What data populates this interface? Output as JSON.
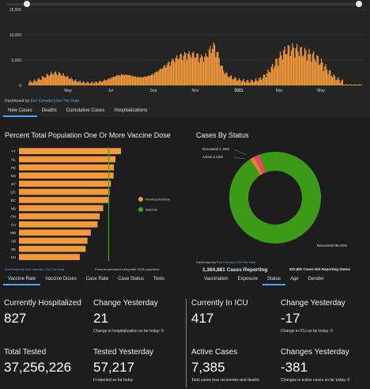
{
  "daily_chart": {
    "yticks": [
      "15,000",
      "10,000",
      "5,000",
      "0"
    ],
    "xticks": [
      "May",
      "Jul",
      "Sep",
      "Nov",
      "2021",
      "Mar",
      "May"
    ],
    "bar_color": "#f39a3c",
    "dashboard_by": "Dashboard by",
    "dashboard_by_link": "Esri Canada",
    "dashboard_sep": "|",
    "data_link": "Get The Data"
  },
  "top_tabs": [
    {
      "label": "New Cases",
      "active": true
    },
    {
      "label": "Deaths",
      "active": false
    },
    {
      "label": "Cumulative Cases",
      "active": false
    },
    {
      "label": "Hospitalizations",
      "active": false
    }
  ],
  "vaccine_panel": {
    "title": "Percent Total Population One Or More Vaccine Dose",
    "footnote_link_text": "Dashboard by Esri Canada | Get The Data",
    "footnote": "Percent calculated using total 2019 population"
  },
  "chart_data": {
    "type": "bar",
    "orientation": "horizontal",
    "categories": [
      "YT",
      "NL",
      "PE",
      "NS",
      "NT",
      "QC",
      "BC",
      "NB",
      "ON",
      "CA",
      "MB",
      "AB",
      "SK",
      "NU"
    ],
    "values": [
      78.2,
      76.4,
      75.9,
      75.8,
      74.9,
      74.5,
      74.2,
      72.4,
      71.3,
      70.6,
      68.4,
      67.3,
      66.7,
      64.8
    ],
    "xlim": [
      45,
      80
    ],
    "xticks": [
      50,
      60,
      70,
      80
    ],
    "national_line": 74.2,
    "series": [
      {
        "name": "Province/Territory",
        "color": "#f39a3c"
      },
      {
        "name": "National",
        "color": "#3caa1a"
      }
    ],
    "legend_position": "right"
  },
  "status_panel": {
    "title": "Cases By Status",
    "donut": [
      {
        "label": "Deceased 1.45%",
        "value": 1.45,
        "color": "#e8823a"
      },
      {
        "label": "Active 2.13%",
        "value": 2.13,
        "color": "#e64a5a"
      },
      {
        "label": "Recovered 96.42%",
        "value": 96.42,
        "color": "#3d9a19"
      }
    ],
    "reporting_count": "1,384,881 Cases Reporting",
    "not_reporting": "622,992 Cases Not Reporting Status",
    "dashboard_by": "Dashboard by",
    "dashboard_by_link": "Esri Canada",
    "data_link": "Get The Data"
  },
  "mid_tabs_left": [
    {
      "label": "Vaccine Rate",
      "active": true
    },
    {
      "label": "Vaccine Doses",
      "active": false
    },
    {
      "label": "Case Rate",
      "active": false
    },
    {
      "label": "Case Status",
      "active": false
    },
    {
      "label": "Tests",
      "active": false
    }
  ],
  "mid_tabs_right": [
    {
      "label": "Vaccination",
      "active": false
    },
    {
      "label": "Exposure",
      "active": false
    },
    {
      "label": "Status",
      "active": true
    },
    {
      "label": "Age",
      "active": false
    },
    {
      "label": "Gender",
      "active": false
    }
  ],
  "stats": {
    "hosp": {
      "label": "Currently Hospitalized",
      "value": "827"
    },
    "hosp_change": {
      "label": "Change Yesterday",
      "value": "21",
      "note": "Change in hospitalization so far today: 0"
    },
    "icu": {
      "label": "Currently In ICU",
      "value": "417"
    },
    "icu_change": {
      "label": "Change Yesterday",
      "value": "-17",
      "note": "Change in ICU so far today: 0"
    },
    "tested": {
      "label": "Total Tested",
      "value": "37,256,226"
    },
    "tested_yday": {
      "label": "Tested Yesterday",
      "value": "57,217",
      "note": "0 reported so far today"
    },
    "active": {
      "label": "Active Cases",
      "value": "7,385",
      "note": "Total cases less recoveries and deaths"
    },
    "active_change": {
      "label": "Changes Yesterday",
      "value": "-381",
      "note": "Changes in active cases so far today: 0"
    }
  }
}
